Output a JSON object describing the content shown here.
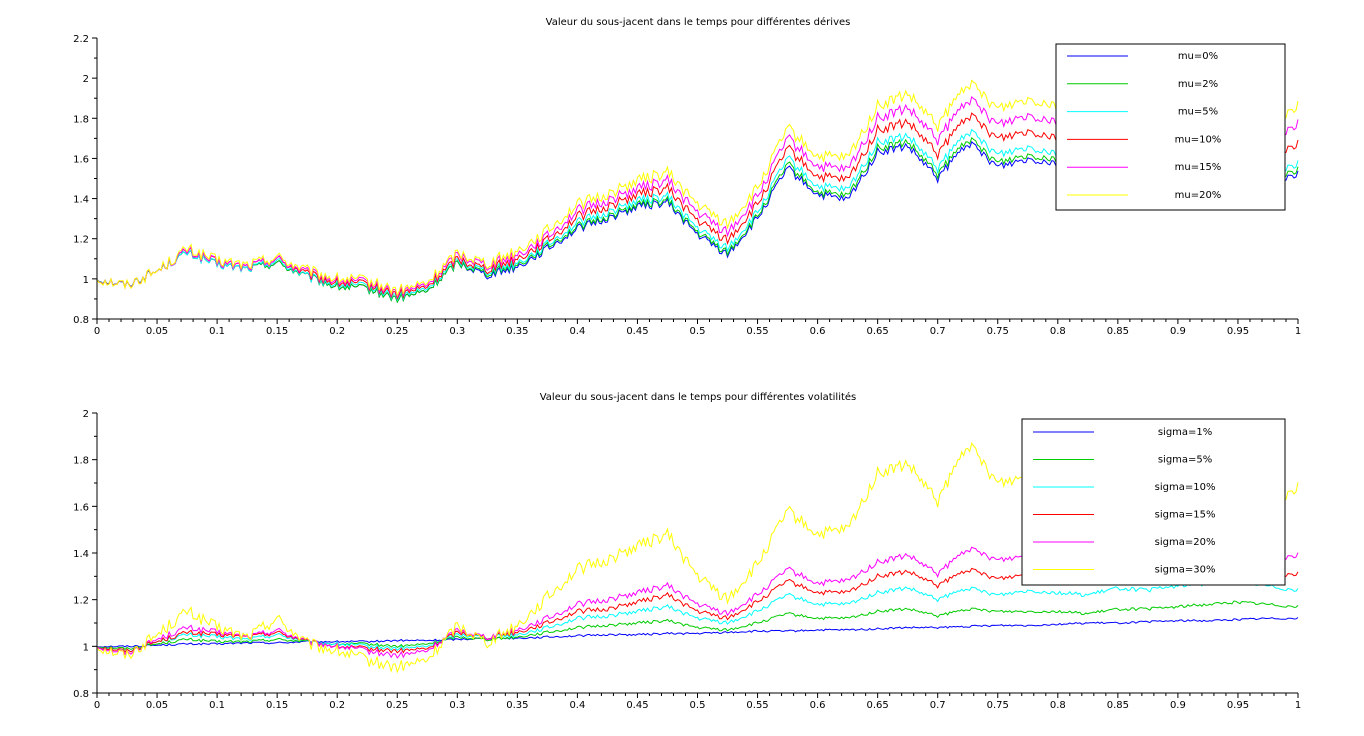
{
  "chart_data": [
    {
      "type": "line",
      "title": "Valeur du sous-jacent dans le temps pour différentes dérives",
      "xlabel": "",
      "ylabel": "",
      "xlim": [
        0,
        1
      ],
      "ylim": [
        0.8,
        2.2
      ],
      "x_ticks": [
        "0",
        "0.05",
        "0.1",
        "0.15",
        "0.2",
        "0.25",
        "0.3",
        "0.35",
        "0.4",
        "0.45",
        "0.5",
        "0.55",
        "0.6",
        "0.65",
        "0.7",
        "0.75",
        "0.8",
        "0.85",
        "0.9",
        "0.95",
        "1"
      ],
      "y_ticks": [
        "0.8",
        "1",
        "1.2",
        "1.4",
        "1.6",
        "1.8",
        "2",
        "2.2"
      ],
      "legend_position": "top-right",
      "grid": false,
      "x": [
        0,
        0.025,
        0.05,
        0.075,
        0.1,
        0.125,
        0.15,
        0.175,
        0.2,
        0.225,
        0.25,
        0.275,
        0.3,
        0.325,
        0.35,
        0.375,
        0.4,
        0.425,
        0.45,
        0.475,
        0.5,
        0.525,
        0.55,
        0.575,
        0.6,
        0.625,
        0.65,
        0.675,
        0.7,
        0.725,
        0.75,
        0.775,
        0.8,
        0.825,
        0.85,
        0.875,
        0.9,
        0.925,
        0.95,
        0.975,
        1
      ],
      "series": [
        {
          "name": "mu=0%",
          "color": "#0000ff",
          "values": [
            1.0,
            0.97,
            1.04,
            1.13,
            1.07,
            1.05,
            1.08,
            1.01,
            0.96,
            0.95,
            0.9,
            0.94,
            1.08,
            1.02,
            1.06,
            1.15,
            1.25,
            1.3,
            1.36,
            1.38,
            1.22,
            1.12,
            1.3,
            1.55,
            1.42,
            1.39,
            1.63,
            1.66,
            1.5,
            1.68,
            1.56,
            1.6,
            1.58,
            1.56,
            1.6,
            1.58,
            1.56,
            1.54,
            1.52,
            1.5,
            1.52
          ]
        },
        {
          "name": "mu=2%",
          "color": "#00cc00",
          "values": [
            1.0,
            0.97,
            1.04,
            1.13,
            1.07,
            1.05,
            1.08,
            1.01,
            0.96,
            0.95,
            0.9,
            0.94,
            1.08,
            1.03,
            1.07,
            1.16,
            1.26,
            1.31,
            1.37,
            1.39,
            1.23,
            1.13,
            1.31,
            1.57,
            1.43,
            1.41,
            1.65,
            1.68,
            1.52,
            1.7,
            1.58,
            1.62,
            1.6,
            1.58,
            1.62,
            1.6,
            1.58,
            1.56,
            1.54,
            1.52,
            1.54
          ]
        },
        {
          "name": "mu=5%",
          "color": "#00ffff",
          "values": [
            1.0,
            0.97,
            1.04,
            1.13,
            1.07,
            1.05,
            1.09,
            1.01,
            0.97,
            0.96,
            0.91,
            0.95,
            1.09,
            1.04,
            1.08,
            1.17,
            1.28,
            1.33,
            1.39,
            1.41,
            1.25,
            1.15,
            1.33,
            1.6,
            1.46,
            1.44,
            1.68,
            1.71,
            1.55,
            1.74,
            1.62,
            1.66,
            1.63,
            1.61,
            1.65,
            1.63,
            1.61,
            1.59,
            1.57,
            1.55,
            1.57
          ]
        },
        {
          "name": "mu=10%",
          "color": "#ff0000",
          "values": [
            1.0,
            0.97,
            1.04,
            1.14,
            1.08,
            1.06,
            1.1,
            1.02,
            0.98,
            0.97,
            0.92,
            0.96,
            1.1,
            1.05,
            1.1,
            1.19,
            1.31,
            1.36,
            1.42,
            1.45,
            1.29,
            1.19,
            1.37,
            1.65,
            1.51,
            1.49,
            1.74,
            1.78,
            1.62,
            1.82,
            1.7,
            1.74,
            1.71,
            1.69,
            1.73,
            1.71,
            1.69,
            1.67,
            1.65,
            1.63,
            1.67
          ]
        },
        {
          "name": "mu=15%",
          "color": "#ff00ff",
          "values": [
            1.0,
            0.97,
            1.04,
            1.14,
            1.08,
            1.06,
            1.1,
            1.03,
            0.99,
            0.98,
            0.93,
            0.97,
            1.12,
            1.07,
            1.12,
            1.21,
            1.34,
            1.39,
            1.45,
            1.49,
            1.33,
            1.23,
            1.41,
            1.7,
            1.56,
            1.54,
            1.8,
            1.85,
            1.69,
            1.9,
            1.77,
            1.82,
            1.79,
            1.77,
            1.81,
            1.79,
            1.77,
            1.75,
            1.73,
            1.71,
            1.77
          ]
        },
        {
          "name": "mu=20%",
          "color": "#ffff00",
          "values": [
            1.0,
            0.97,
            1.04,
            1.15,
            1.09,
            1.07,
            1.11,
            1.04,
            1.0,
            0.99,
            0.94,
            0.98,
            1.13,
            1.08,
            1.14,
            1.24,
            1.37,
            1.42,
            1.49,
            1.53,
            1.37,
            1.27,
            1.45,
            1.75,
            1.61,
            1.6,
            1.86,
            1.92,
            1.76,
            1.98,
            1.85,
            1.9,
            1.87,
            1.85,
            1.89,
            1.87,
            1.85,
            1.83,
            1.81,
            1.79,
            1.86
          ]
        }
      ]
    },
    {
      "type": "line",
      "title": "Valeur du sous-jacent dans le temps pour différentes volatilités",
      "xlabel": "",
      "ylabel": "",
      "xlim": [
        0,
        1
      ],
      "ylim": [
        0.8,
        2
      ],
      "x_ticks": [
        "0",
        "0.05",
        "0.1",
        "0.15",
        "0.2",
        "0.25",
        "0.3",
        "0.35",
        "0.4",
        "0.45",
        "0.5",
        "0.55",
        "0.6",
        "0.65",
        "0.7",
        "0.75",
        "0.8",
        "0.85",
        "0.9",
        "0.95",
        "1"
      ],
      "y_ticks": [
        "0.8",
        "1",
        "1.2",
        "1.4",
        "1.6",
        "1.8",
        "2"
      ],
      "legend_position": "top-right",
      "grid": false,
      "x": [
        0,
        0.025,
        0.05,
        0.075,
        0.1,
        0.125,
        0.15,
        0.175,
        0.2,
        0.225,
        0.25,
        0.275,
        0.3,
        0.325,
        0.35,
        0.375,
        0.4,
        0.425,
        0.45,
        0.475,
        0.5,
        0.525,
        0.55,
        0.575,
        0.6,
        0.625,
        0.65,
        0.675,
        0.7,
        0.725,
        0.75,
        0.775,
        0.8,
        0.825,
        0.85,
        0.875,
        0.9,
        0.925,
        0.95,
        0.975,
        1
      ],
      "series": [
        {
          "name": "sigma=1%",
          "color": "#0000ff",
          "values": [
            1.0,
            1.0,
            1.005,
            1.01,
            1.01,
            1.015,
            1.015,
            1.02,
            1.02,
            1.02,
            1.025,
            1.025,
            1.03,
            1.035,
            1.035,
            1.04,
            1.045,
            1.05,
            1.05,
            1.055,
            1.055,
            1.06,
            1.065,
            1.065,
            1.07,
            1.07,
            1.075,
            1.08,
            1.08,
            1.085,
            1.09,
            1.09,
            1.095,
            1.1,
            1.1,
            1.105,
            1.11,
            1.11,
            1.115,
            1.12,
            1.12
          ]
        },
        {
          "name": "sigma=5%",
          "color": "#00cc00",
          "values": [
            1.0,
            0.99,
            1.01,
            1.03,
            1.02,
            1.02,
            1.03,
            1.02,
            1.01,
            1.01,
            1.0,
            1.01,
            1.04,
            1.03,
            1.04,
            1.06,
            1.08,
            1.09,
            1.1,
            1.11,
            1.08,
            1.07,
            1.1,
            1.14,
            1.12,
            1.12,
            1.15,
            1.16,
            1.13,
            1.16,
            1.15,
            1.15,
            1.15,
            1.14,
            1.16,
            1.16,
            1.17,
            1.18,
            1.19,
            1.18,
            1.17
          ]
        },
        {
          "name": "sigma=10%",
          "color": "#00ffff",
          "values": [
            1.0,
            0.98,
            1.02,
            1.05,
            1.04,
            1.03,
            1.05,
            1.02,
            1.01,
            1.0,
            0.99,
            1.0,
            1.05,
            1.04,
            1.05,
            1.08,
            1.12,
            1.13,
            1.15,
            1.17,
            1.12,
            1.1,
            1.15,
            1.22,
            1.18,
            1.18,
            1.23,
            1.25,
            1.2,
            1.25,
            1.22,
            1.24,
            1.23,
            1.22,
            1.25,
            1.24,
            1.26,
            1.27,
            1.28,
            1.26,
            1.24
          ]
        },
        {
          "name": "sigma=15%",
          "color": "#ff0000",
          "values": [
            1.0,
            0.98,
            1.02,
            1.06,
            1.05,
            1.04,
            1.06,
            1.02,
            1.0,
            0.99,
            0.98,
            0.99,
            1.06,
            1.04,
            1.06,
            1.1,
            1.15,
            1.16,
            1.19,
            1.22,
            1.15,
            1.12,
            1.19,
            1.28,
            1.23,
            1.23,
            1.3,
            1.32,
            1.26,
            1.33,
            1.29,
            1.31,
            1.3,
            1.28,
            1.3,
            1.29,
            1.3,
            1.31,
            1.32,
            1.31,
            1.31
          ]
        },
        {
          "name": "sigma=20%",
          "color": "#ff00ff",
          "values": [
            1.0,
            0.97,
            1.03,
            1.08,
            1.06,
            1.04,
            1.07,
            1.02,
            1.0,
            0.98,
            0.96,
            0.98,
            1.07,
            1.04,
            1.07,
            1.12,
            1.18,
            1.2,
            1.23,
            1.26,
            1.18,
            1.14,
            1.22,
            1.33,
            1.27,
            1.28,
            1.36,
            1.39,
            1.31,
            1.42,
            1.37,
            1.39,
            1.37,
            1.35,
            1.38,
            1.37,
            1.38,
            1.39,
            1.4,
            1.38,
            1.39
          ]
        },
        {
          "name": "sigma=30%",
          "color": "#ffff00",
          "values": [
            1.0,
            0.96,
            1.05,
            1.15,
            1.08,
            1.04,
            1.12,
            1.01,
            0.98,
            0.94,
            0.91,
            0.94,
            1.09,
            1.02,
            1.09,
            1.21,
            1.33,
            1.37,
            1.43,
            1.48,
            1.3,
            1.2,
            1.35,
            1.58,
            1.48,
            1.5,
            1.74,
            1.78,
            1.62,
            1.87,
            1.7,
            1.73,
            1.69,
            1.66,
            1.72,
            1.69,
            1.71,
            1.68,
            1.66,
            1.62,
            1.68
          ]
        }
      ]
    }
  ]
}
